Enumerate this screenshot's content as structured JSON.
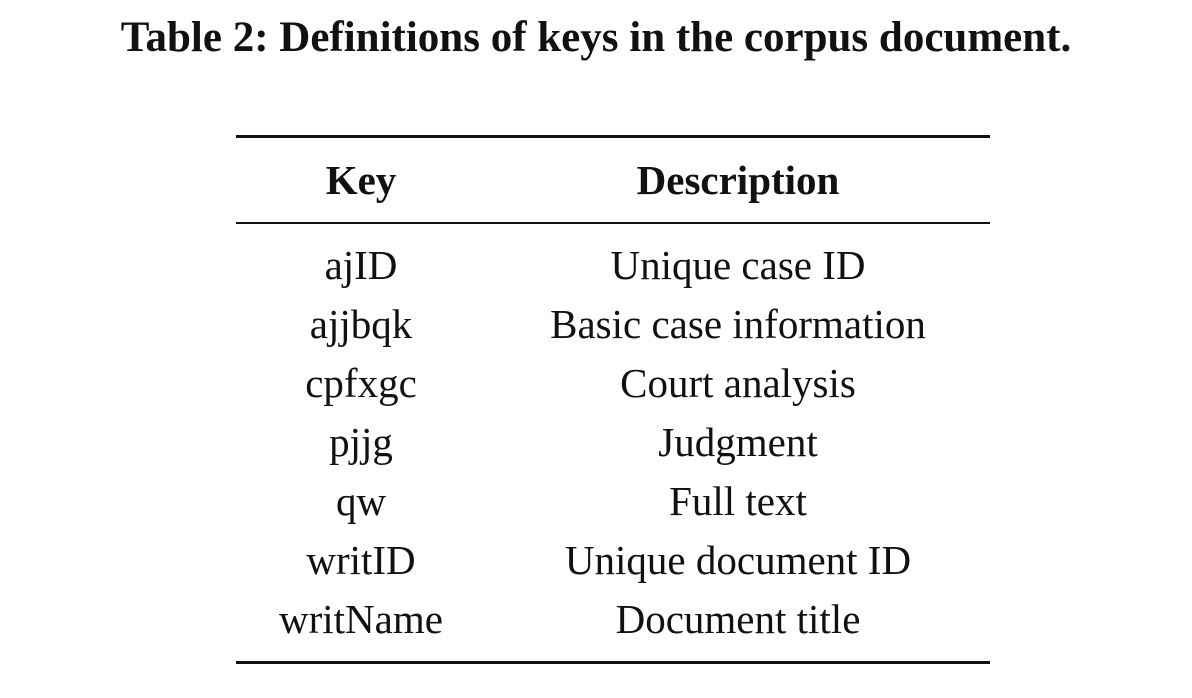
{
  "caption": "Table 2: Definitions of keys in the corpus document.",
  "table": {
    "headers": [
      "Key",
      "Description"
    ],
    "rows": [
      {
        "key": "ajID",
        "description": "Unique case ID"
      },
      {
        "key": "ajjbqk",
        "description": "Basic case information"
      },
      {
        "key": "cpfxgc",
        "description": "Court analysis"
      },
      {
        "key": "pjjg",
        "description": "Judgment"
      },
      {
        "key": "qw",
        "description": "Full text"
      },
      {
        "key": "writID",
        "description": "Unique document ID"
      },
      {
        "key": "writName",
        "description": "Document title"
      }
    ]
  }
}
